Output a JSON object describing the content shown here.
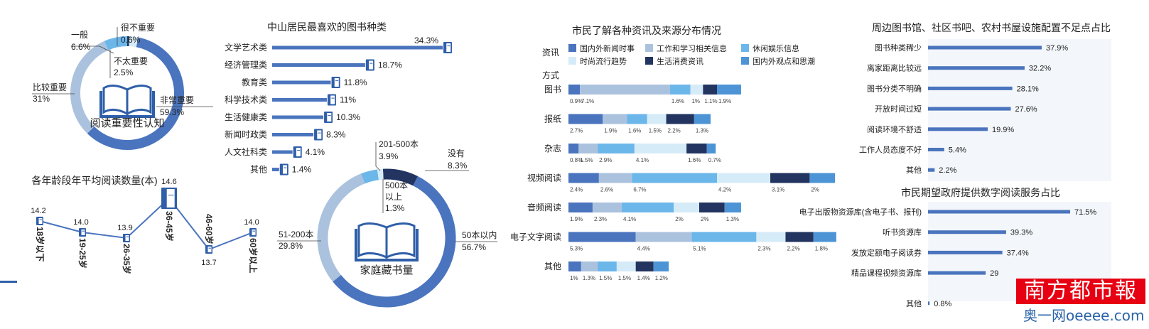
{
  "colors": {
    "dark_blue": "#4a74bd",
    "light_blue": "#abc2de",
    "sky_blue": "#6cb7ea",
    "pale_blue": "#d6ebf8",
    "navy": "#22345f",
    "mid_blue": "#4d94d6",
    "text": "#222222"
  },
  "chart_data": [
    {
      "id": "importance",
      "type": "pie",
      "title": "阅读重要性认知",
      "labels": [
        "非常重要",
        "比较重要",
        "一般",
        "很不重要",
        "不太重要"
      ],
      "values": [
        59.3,
        31,
        6.6,
        0.6,
        2.5
      ],
      "value_labels": [
        "59.3%",
        "31%",
        "6.6%",
        "0.6%",
        "2.5%"
      ]
    },
    {
      "id": "genres",
      "type": "bar",
      "orientation": "horizontal",
      "title": "中山居民最喜欢的图书种类",
      "categories": [
        "文学艺术类",
        "经济管理类",
        "教育类",
        "科学技术类",
        "生活健康类",
        "新闻时政类",
        "人文社科类",
        "其他"
      ],
      "values": [
        34.3,
        18.7,
        11.8,
        11,
        10.3,
        8.3,
        4.1,
        1.4
      ],
      "value_labels": [
        "34.3%",
        "18.7%",
        "11.8%",
        "11%",
        "10.3%",
        "8.3%",
        "4.1%",
        "1.4%"
      ]
    },
    {
      "id": "age",
      "type": "line",
      "title": "各年龄段年平均阅读数量(本)",
      "categories": [
        "18岁以下",
        "19-25岁",
        "26-35岁",
        "36-45岁",
        "46-60岁",
        "60岁以上"
      ],
      "values": [
        14.2,
        14.0,
        13.9,
        14.6,
        13.7,
        14.0
      ],
      "value_labels": [
        "14.2",
        "14.0",
        "13.9",
        "14.6",
        "13.7",
        "14.0"
      ]
    },
    {
      "id": "home_books",
      "type": "pie",
      "title": "家庭藏书量",
      "labels": [
        "50本以内",
        "51-200本",
        "201-500本",
        "500本以上",
        "没有"
      ],
      "values": [
        56.7,
        29.8,
        3.9,
        1.3,
        8.3
      ],
      "value_labels": [
        "56.7%",
        "29.8%",
        "3.9%",
        "1.3%",
        "8.3%"
      ]
    },
    {
      "id": "sources",
      "type": "bar",
      "orientation": "horizontal",
      "stacked": true,
      "title": "市民了解各种资讯及来源分布情况",
      "legend_title": "资讯",
      "axis_title": "方式",
      "legend_placement": "top",
      "categories": [
        "图书",
        "报纸",
        "杂志",
        "视频阅读",
        "音频阅读",
        "电子文字阅读",
        "其他"
      ],
      "series": [
        {
          "name": "国内外新闻时事",
          "values": [
            0.9,
            2.7,
            0.8,
            2.4,
            1.9,
            5.3,
            1
          ]
        },
        {
          "name": "工作和学习相关信息",
          "values": [
            7.1,
            1.9,
            1.5,
            2.6,
            2.3,
            4.4,
            1.3
          ]
        },
        {
          "name": "休闲娱乐信息",
          "values": [
            1.6,
            1.6,
            2.9,
            6.7,
            4.1,
            5.1,
            1.5
          ]
        },
        {
          "name": "时尚流行趋势",
          "values": [
            1,
            1.5,
            4.1,
            4.2,
            2,
            2.3,
            1.5
          ]
        },
        {
          "name": "生活消费资讯",
          "values": [
            1.1,
            2.2,
            1.6,
            3.1,
            2,
            2.2,
            1.4
          ]
        },
        {
          "name": "国内外观点和思潮",
          "values": [
            1.9,
            1.3,
            0.7,
            2,
            1.3,
            1.8,
            1.2
          ]
        }
      ],
      "value_labels": [
        [
          "0.9%",
          "7.1%",
          "1.6%",
          "1%",
          "1.1%",
          "1.9%"
        ],
        [
          "2.7%",
          "1.9%",
          "1.6%",
          "1.5%",
          "2.2%",
          "1.3%"
        ],
        [
          "0.8%",
          "1.5%",
          "2.9%",
          "4.1%",
          "1.6%",
          "0.7%"
        ],
        [
          "2.4%",
          "2.6%",
          "6.7%",
          "4.2%",
          "3.1%",
          "2%"
        ],
        [
          "1.9%",
          "2.3%",
          "4.1%",
          "2%",
          "2%",
          "1.3%"
        ],
        [
          "5.3%",
          "4.4%",
          "5.1%",
          "2.3%",
          "2.2%",
          "1.8%"
        ],
        [
          "1%",
          "1.3%",
          "1.5%",
          "1.5%",
          "1.4%",
          "1.2%"
        ]
      ]
    },
    {
      "id": "facilities",
      "type": "bar",
      "orientation": "horizontal",
      "title": "周边图书馆、社区书吧、农村书屋设施配置不足点占比",
      "categories": [
        "图书种类稀少",
        "离家距离比较远",
        "图书分类不明确",
        "开放时间过短",
        "阅读环境不舒适",
        "工作人员态度不好",
        "其他"
      ],
      "values": [
        37.9,
        32.2,
        28.1,
        27.6,
        19.9,
        5.4,
        2.2
      ],
      "value_labels": [
        "37.9%",
        "32.2%",
        "28.1%",
        "27.6%",
        "19.9%",
        "5.4%",
        "2.2%"
      ]
    },
    {
      "id": "digital",
      "type": "bar",
      "orientation": "horizontal",
      "title": "市民期望政府提供数字阅读服务占比",
      "categories": [
        "电子出版物资源库(含电子书、报刊)",
        "听书资源库",
        "发放定额电子阅读券",
        "精品课程视频资源库",
        "其他"
      ],
      "values": [
        71.5,
        39.3,
        37.4,
        29,
        0.8
      ],
      "value_labels": [
        "71.5%",
        "39.3%",
        "37.4%",
        "29",
        "0.8%"
      ]
    }
  ],
  "watermark": {
    "brand": "南方都市報",
    "site": "奥一网oeeee.com"
  }
}
